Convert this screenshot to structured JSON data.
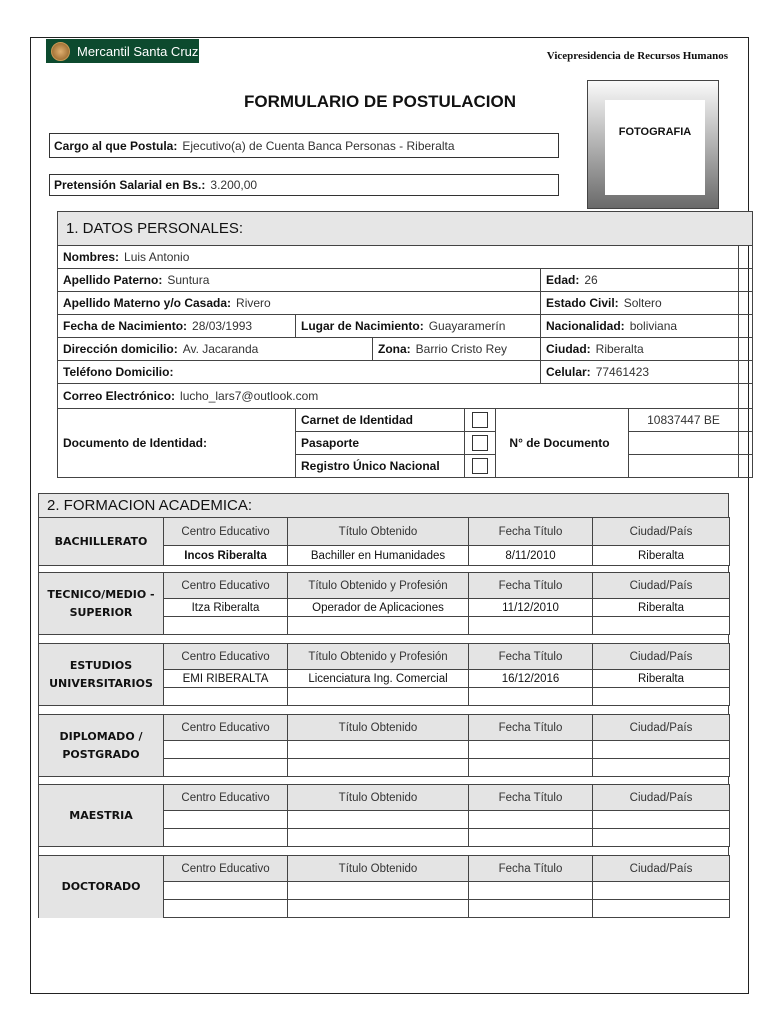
{
  "header": {
    "logo_text": "Mercantil Santa Cruz",
    "department": "Vicepresidencia de Recursos Humanos",
    "title": "FORMULARIO DE POSTULACION",
    "photo_label": "FOTOGRAFIA",
    "brand_color": "#0d4a2e"
  },
  "cargo": {
    "label": "Cargo al que Postula:",
    "value": "Ejecutivo(a) de Cuenta Banca Personas - Riberalta"
  },
  "pretension": {
    "label": "Pretensión Salarial en Bs.:",
    "value": "3.200,00"
  },
  "datos": {
    "title": "1. DATOS PERSONALES:",
    "nombres": {
      "label": "Nombres:",
      "value": "Luis Antonio"
    },
    "paterno": {
      "label": "Apellido Paterno:",
      "value": "Suntura"
    },
    "edad": {
      "label": "Edad:",
      "value": "26"
    },
    "materno": {
      "label": "Apellido Materno y/o Casada:",
      "value": "Rivero"
    },
    "civil": {
      "label": "Estado Civil:",
      "value": "Soltero"
    },
    "fecha_nac": {
      "label": "Fecha de Nacimiento:",
      "value": "28/03/1993"
    },
    "lugar_nac": {
      "label": "Lugar de Nacimiento:",
      "value": "Guayaramerín"
    },
    "nacionalidad": {
      "label": "Nacionalidad:",
      "value": "boliviana"
    },
    "direccion": {
      "label": "Dirección domicilio:",
      "value": "Av. Jacaranda"
    },
    "zona": {
      "label": "Zona:",
      "value": "Barrio Cristo Rey"
    },
    "ciudad": {
      "label": "Ciudad:",
      "value": "Riberalta"
    },
    "telefono": {
      "label": "Teléfono Domicilio:",
      "value": ""
    },
    "celular": {
      "label": "Celular:",
      "value": "77461423"
    },
    "correo": {
      "label": "Correo Electrónico:",
      "value": "lucho_lars7@outlook.com"
    },
    "documento": {
      "label": "Documento de Identidad:",
      "numero_label": "N° de Documento",
      "tipos": [
        {
          "label": "Carnet de Identidad",
          "checked": false,
          "numero": "10837447 BE"
        },
        {
          "label": "Pasaporte",
          "checked": false,
          "numero": ""
        },
        {
          "label": "Registro Único Nacional",
          "checked": false,
          "numero": ""
        }
      ]
    }
  },
  "formacion": {
    "title": "2. FORMACION ACADEMICA:",
    "groups": [
      {
        "label": "BACHILLERATO",
        "headers": [
          "Centro Educativo",
          "Título Obtenido",
          "Fecha Título",
          "Ciudad/País"
        ],
        "rows": [
          [
            "Incos Riberalta",
            "Bachiller en Humanidades",
            "8/11/2010",
            "Riberalta"
          ]
        ]
      },
      {
        "label": "TECNICO/MEDIO - SUPERIOR",
        "headers": [
          "Centro Educativo",
          "Título Obtenido y Profesión",
          "Fecha Título",
          "Ciudad/País"
        ],
        "rows": [
          [
            "Itza Riberalta",
            "Operador de Aplicaciones",
            "11/12/2010",
            "Riberalta"
          ],
          [
            "",
            "",
            "",
            ""
          ]
        ]
      },
      {
        "label": "ESTUDIOS UNIVERSITARIOS",
        "headers": [
          "Centro Educativo",
          "Título Obtenido y Profesión",
          "Fecha Título",
          "Ciudad/País"
        ],
        "rows": [
          [
            "EMI RIBERALTA",
            "Licenciatura Ing. Comercial",
            "16/12/2016",
            "Riberalta"
          ],
          [
            "",
            "",
            "",
            ""
          ]
        ]
      },
      {
        "label": "DIPLOMADO / POSTGRADO",
        "headers": [
          "Centro Educativo",
          "Título Obtenido",
          "Fecha Título",
          "Ciudad/País"
        ],
        "rows": [
          [
            "",
            "",
            "",
            ""
          ],
          [
            "",
            "",
            "",
            ""
          ]
        ]
      },
      {
        "label": "MAESTRIA",
        "headers": [
          "Centro Educativo",
          "Título Obtenido",
          "Fecha Título",
          "Ciudad/País"
        ],
        "rows": [
          [
            "",
            "",
            "",
            ""
          ],
          [
            "",
            "",
            "",
            ""
          ]
        ]
      },
      {
        "label": "DOCTORADO",
        "headers": [
          "Centro Educativo",
          "Título Obtenido",
          "Fecha Título",
          "Ciudad/País"
        ],
        "rows": [
          [
            "",
            "",
            "",
            ""
          ],
          [
            "",
            "",
            "",
            ""
          ]
        ]
      }
    ]
  }
}
